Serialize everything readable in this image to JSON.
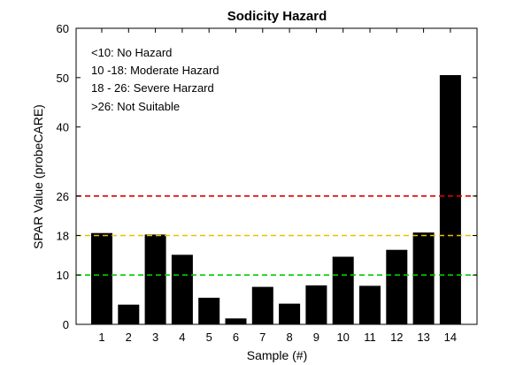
{
  "chart_data": {
    "type": "bar",
    "title": "Sodicity Hazard",
    "xlabel": "Sample (#)",
    "ylabel": "SPAR Value (probeCARE)",
    "categories": [
      "1",
      "2",
      "3",
      "4",
      "5",
      "6",
      "7",
      "8",
      "9",
      "10",
      "11",
      "12",
      "13",
      "14"
    ],
    "values": [
      18.5,
      4.0,
      18.2,
      14.1,
      5.4,
      1.2,
      7.6,
      4.2,
      7.9,
      13.7,
      7.8,
      15.1,
      18.6,
      50.5
    ],
    "ylim": [
      0,
      60
    ],
    "yticks": [
      "0",
      "10",
      "18",
      "26",
      "40",
      "50",
      "60"
    ],
    "bar_color": "#000000",
    "grid": false,
    "thresholds": [
      {
        "value": 10,
        "color": "#00cc00"
      },
      {
        "value": 18,
        "color": "#e6c200"
      },
      {
        "value": 26,
        "color": "#dd0000"
      }
    ],
    "annotations": [
      "<10: No Hazard",
      "10 -18: Moderate Hazard",
      "18 - 26: Severe Harzard",
      ">26: Not Suitable"
    ]
  }
}
